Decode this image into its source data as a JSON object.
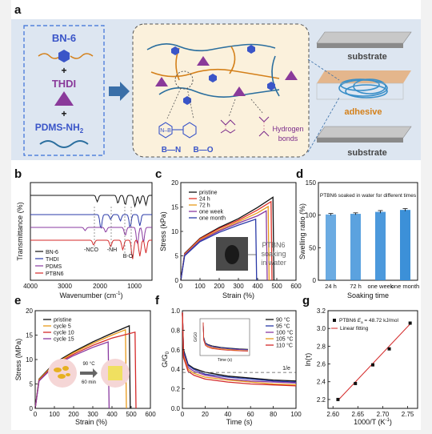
{
  "panels": {
    "a": {
      "label": "a",
      "components": [
        "BN-6",
        "THDI",
        "PDMS-NH",
        "2"
      ],
      "plus": "+",
      "bonds": {
        "bn": "B—N",
        "bo": "B—O",
        "hydrogen": "Hydrogen",
        "bonds": "bonds",
        "nb": "N–B"
      },
      "substrate_top": "substrate",
      "adhesive": "adhesive",
      "substrate_bottom": "substrate",
      "colors": {
        "bn6": "#3a55c8",
        "thdi": "#8a3a9a",
        "pdms": "#2a6e9e",
        "network_box": "#fbf1dc",
        "adhesive_mesh": "#3a8fc8",
        "adhesive_layer": "#e6a56a"
      }
    },
    "b": {
      "label": "b",
      "xlabel": "Wavenumber (cm",
      "xlabel_sup": "-1",
      "xlabel_end": ")",
      "ylabel": "Transmittance (%)",
      "xticks": [
        "4000",
        "3000",
        "2000",
        "1000"
      ],
      "annotations": [
        "-NCO",
        "-NH",
        "B-O"
      ],
      "legend": [
        "BN-6",
        "THDI",
        "PDMS",
        "PTBN6"
      ],
      "colors": [
        "#111111",
        "#2a3aa8",
        "#8a3aa0",
        "#d42a2a"
      ]
    },
    "c": {
      "label": "c",
      "xlabel": "Strain (%)",
      "ylabel": "Stress (kPa)",
      "xticks": [
        "0",
        "100",
        "200",
        "300",
        "400",
        "500",
        "600"
      ],
      "yticks": [
        "0",
        "5",
        "10",
        "15",
        "20"
      ],
      "legend": [
        "pristine",
        "24 h",
        "72 h",
        "one week",
        "one month"
      ],
      "inset_text": [
        "PTBN6",
        "soaking",
        "in water"
      ],
      "colors": [
        "#111111",
        "#e0342a",
        "#e89a1a",
        "#8a3aa0",
        "#2a3aa8"
      ]
    },
    "d": {
      "label": "d",
      "title": "PTBN6 soaked in water for different times",
      "xlabel": "Soaking time",
      "ylabel": "Swelling ratio (%)",
      "yticks": [
        "0",
        "50",
        "100",
        "150"
      ],
      "color": "#3a8fd8"
    },
    "e": {
      "label": "e",
      "xlabel": "Strain (%)",
      "ylabel": "Stress (MPa)",
      "xticks": [
        "0",
        "100",
        "200",
        "300",
        "400",
        "500",
        "600"
      ],
      "yticks": [
        "0",
        "5",
        "10",
        "15",
        "20"
      ],
      "legend": [
        "pristine",
        "cycle 5",
        "cycle 10",
        "cycle 15"
      ],
      "inset_text": [
        "90 °C",
        "60 min"
      ],
      "colors": [
        "#111111",
        "#e89a1a",
        "#d42a2a",
        "#8a3aa0"
      ]
    },
    "f": {
      "label": "f",
      "xlabel": "Time (s)",
      "ylabel": "G/G",
      "ylabel_sub": "0",
      "xticks": [
        "0",
        "20",
        "40",
        "60",
        "80",
        "100"
      ],
      "yticks": [
        "0.0",
        "0.2",
        "0.4",
        "0.6",
        "0.8",
        "1.0"
      ],
      "legend": [
        "90 °C",
        "95 °C",
        "100 °C",
        "105 °C",
        "110 °C"
      ],
      "note": "1/e",
      "inset_xlabel": "Time (s)",
      "inset_ylabel": "G/G0",
      "colors": [
        "#111111",
        "#2a3aa8",
        "#8a3aa0",
        "#e89a1a",
        "#d42a2a"
      ]
    },
    "g": {
      "label": "g",
      "legend_points": "PTBN6",
      "legend_ea": "E",
      "legend_ea_sub": "a",
      "legend_ea_val": " = 48.72 kJ/mol",
      "legend_fit": "Linear fitting",
      "xlabel": "1000/T (K",
      "xlabel_sup": "-1",
      "xlabel_end": ")",
      "ylabel": "ln(τ)",
      "xticks": [
        "2.60",
        "2.65",
        "2.70",
        "2.75"
      ],
      "yticks": [
        "2.2",
        "2.4",
        "2.6",
        "2.8",
        "3.0",
        "3.2"
      ],
      "fit_color": "#d42a2a"
    }
  },
  "chart_data": [
    {
      "type": "bar",
      "panel": "d",
      "title": "PTBN6 soaked in water for different times",
      "xlabel": "Soaking time",
      "ylabel": "Swelling ratio (%)",
      "categories": [
        "24 h",
        "72 h",
        "one week",
        "one month"
      ],
      "values": [
        101,
        102,
        105,
        108
      ],
      "errors": [
        1.5,
        1.5,
        2,
        2
      ],
      "ylim": [
        0,
        150
      ]
    },
    {
      "type": "line",
      "panel": "c",
      "xlabel": "Strain (%)",
      "ylabel": "Stress (kPa)",
      "xlim": [
        0,
        600
      ],
      "ylim": [
        0,
        20
      ],
      "series": [
        {
          "name": "pristine",
          "x": [
            0,
            20,
            100,
            200,
            300,
            400,
            480,
            485
          ],
          "y": [
            0,
            5.5,
            8.6,
            10.8,
            12.6,
            14.9,
            17.0,
            0
          ]
        },
        {
          "name": "24 h",
          "x": [
            0,
            20,
            100,
            200,
            300,
            400,
            470,
            475
          ],
          "y": [
            0,
            5.4,
            8.5,
            10.6,
            12.3,
            14.4,
            16.1,
            0
          ]
        },
        {
          "name": "72 h",
          "x": [
            0,
            20,
            100,
            200,
            300,
            400,
            455,
            460
          ],
          "y": [
            0,
            5.3,
            8.3,
            10.3,
            12.0,
            13.8,
            15.1,
            0
          ]
        },
        {
          "name": "one week",
          "x": [
            0,
            20,
            100,
            200,
            300,
            400,
            445,
            450
          ],
          "y": [
            0,
            5.2,
            8.1,
            10.1,
            11.7,
            13.2,
            14.2,
            0
          ]
        },
        {
          "name": "one month",
          "x": [
            0,
            20,
            100,
            200,
            300,
            390,
            395
          ],
          "y": [
            0,
            5.0,
            7.9,
            9.8,
            11.3,
            12.5,
            0
          ]
        }
      ]
    },
    {
      "type": "line",
      "panel": "e",
      "xlabel": "Strain (%)",
      "ylabel": "Stress (MPa)",
      "xlim": [
        0,
        600
      ],
      "ylim": [
        0,
        20
      ],
      "series": [
        {
          "name": "pristine",
          "x": [
            0,
            20,
            100,
            200,
            300,
            400,
            490,
            495
          ],
          "y": [
            0,
            6.0,
            9.3,
            11.6,
            13.6,
            15.4,
            16.9,
            0
          ]
        },
        {
          "name": "cycle 5",
          "x": [
            0,
            20,
            100,
            200,
            300,
            400,
            470,
            475
          ],
          "y": [
            0,
            5.9,
            9.1,
            11.4,
            13.3,
            15.0,
            16.1,
            0
          ]
        },
        {
          "name": "cycle 10",
          "x": [
            0,
            20,
            100,
            200,
            300,
            400,
            520,
            525
          ],
          "y": [
            0,
            5.7,
            8.9,
            11.1,
            12.9,
            14.4,
            15.6,
            0
          ]
        },
        {
          "name": "cycle 15",
          "x": [
            0,
            20,
            100,
            200,
            300,
            380,
            385
          ],
          "y": [
            0,
            5.6,
            8.7,
            10.8,
            12.5,
            13.6,
            0
          ]
        }
      ]
    },
    {
      "type": "line",
      "panel": "f",
      "xlabel": "Time (s)",
      "ylabel": "G/G0",
      "xlim": [
        0,
        100
      ],
      "ylim": [
        0,
        1.0
      ],
      "series": [
        {
          "name": "90 °C",
          "x": [
            0,
            1,
            5,
            10,
            20,
            40,
            60,
            80,
            100
          ],
          "y": [
            0.98,
            0.6,
            0.45,
            0.41,
            0.37,
            0.33,
            0.31,
            0.29,
            0.28
          ]
        },
        {
          "name": "95 °C",
          "x": [
            0,
            1,
            5,
            10,
            20,
            40,
            60,
            80,
            100
          ],
          "y": [
            0.98,
            0.58,
            0.44,
            0.4,
            0.35,
            0.32,
            0.3,
            0.28,
            0.27
          ]
        },
        {
          "name": "100 °C",
          "x": [
            0,
            1,
            5,
            10,
            20,
            40,
            60,
            80,
            100
          ],
          "y": [
            0.98,
            0.56,
            0.42,
            0.38,
            0.34,
            0.3,
            0.28,
            0.27,
            0.26
          ]
        },
        {
          "name": "105 °C",
          "x": [
            0,
            1,
            5,
            10,
            20,
            40,
            60,
            80,
            100
          ],
          "y": [
            0.98,
            0.54,
            0.4,
            0.36,
            0.32,
            0.29,
            0.27,
            0.25,
            0.24
          ]
        },
        {
          "name": "110 °C",
          "x": [
            0,
            1,
            5,
            10,
            20,
            40,
            60,
            80,
            100
          ],
          "y": [
            0.98,
            0.52,
            0.38,
            0.34,
            0.3,
            0.27,
            0.25,
            0.24,
            0.23
          ]
        }
      ],
      "reference_line_y": 0.368
    },
    {
      "type": "scatter",
      "panel": "g",
      "xlabel": "1000/T (K-1)",
      "ylabel": "ln(τ)",
      "xlim": [
        2.59,
        2.77
      ],
      "ylim": [
        2.1,
        3.2
      ],
      "series": [
        {
          "name": "PTBN6",
          "x": [
            2.61,
            2.645,
            2.68,
            2.713,
            2.755
          ],
          "y": [
            2.2,
            2.38,
            2.59,
            2.77,
            3.06
          ]
        }
      ],
      "fit": {
        "x": [
          2.61,
          2.755
        ],
        "y": [
          2.19,
          3.05
        ]
      }
    },
    {
      "type": "line",
      "panel": "b",
      "xlabel": "Wavenumber (cm-1)",
      "ylabel": "Transmittance (%)",
      "xlim": [
        4000,
        500
      ],
      "series": [
        {
          "name": "BN-6"
        },
        {
          "name": "THDI"
        },
        {
          "name": "PDMS"
        },
        {
          "name": "PTBN6"
        }
      ]
    }
  ]
}
